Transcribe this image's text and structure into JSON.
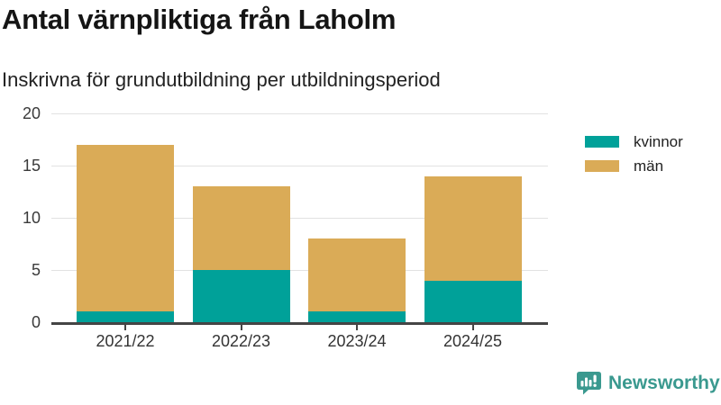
{
  "header": {
    "title": "Antal värnpliktiga från Laholm",
    "subtitle": "Inskrivna för grundutbildning per utbildningsperiod"
  },
  "chart_data": {
    "type": "bar",
    "stacked": true,
    "title": "Antal värnpliktiga från Laholm",
    "subtitle": "Inskrivna för grundutbildning per utbildningsperiod",
    "categories": [
      "2021/22",
      "2022/23",
      "2023/24",
      "2024/25"
    ],
    "series": [
      {
        "name": "kvinnor",
        "color": "#00a199",
        "values": [
          1,
          5,
          1,
          4
        ]
      },
      {
        "name": "män",
        "color": "#daab57",
        "values": [
          16,
          8,
          7,
          10
        ]
      }
    ],
    "totals": [
      17,
      13,
      8,
      14
    ],
    "xlabel": "",
    "ylabel": "",
    "ylim": [
      0,
      20
    ],
    "yticks": [
      0,
      5,
      10,
      15,
      20
    ],
    "grid": true,
    "legend_position": "right",
    "colors": {
      "gridline": "#e2e2e2",
      "axis_line": "#454545",
      "tick_label": "#3a3a3a"
    }
  },
  "branding": {
    "logo_text": "Newsworthy",
    "logo_color": "#3a998f",
    "logo_icon": "newsworthy-chart-bubble-icon"
  }
}
